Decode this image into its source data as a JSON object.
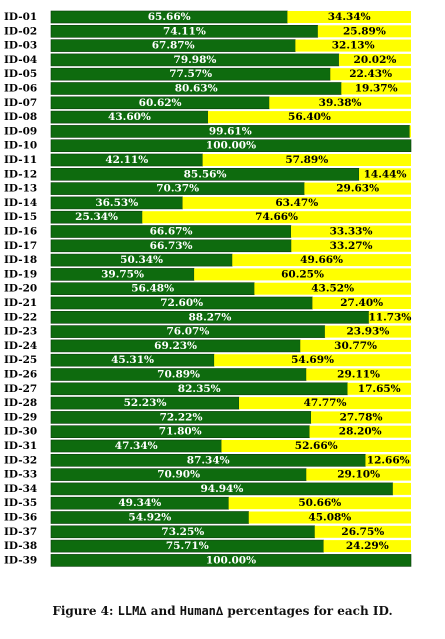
{
  "chart_data": {
    "type": "bar",
    "stacked": true,
    "orientation": "horizontal",
    "categories": [
      "ID-01",
      "ID-02",
      "ID-03",
      "ID-04",
      "ID-05",
      "ID-06",
      "ID-07",
      "ID-08",
      "ID-09",
      "ID-10",
      "ID-11",
      "ID-12",
      "ID-13",
      "ID-14",
      "ID-15",
      "ID-16",
      "ID-17",
      "ID-18",
      "ID-19",
      "ID-20",
      "ID-21",
      "ID-22",
      "ID-23",
      "ID-24",
      "ID-25",
      "ID-26",
      "ID-27",
      "ID-28",
      "ID-29",
      "ID-30",
      "ID-31",
      "ID-32",
      "ID-33",
      "ID-34",
      "ID-35",
      "ID-36",
      "ID-37",
      "ID-38",
      "ID-39"
    ],
    "series": [
      {
        "color": "#0e6b0e",
        "values": [
          65.66,
          74.11,
          67.87,
          79.98,
          77.57,
          80.63,
          60.62,
          43.6,
          99.61,
          100.0,
          42.11,
          85.56,
          70.37,
          36.53,
          25.34,
          66.67,
          66.73,
          50.34,
          39.75,
          56.48,
          72.6,
          88.27,
          76.07,
          69.23,
          45.31,
          70.89,
          82.35,
          52.23,
          72.22,
          71.8,
          47.34,
          87.34,
          70.9,
          94.94,
          49.34,
          54.92,
          73.25,
          75.71,
          100.0
        ],
        "labels": [
          "65.66%",
          "74.11%",
          "67.87%",
          "79.98%",
          "77.57%",
          "80.63%",
          "60.62%",
          "43.60%",
          "99.61%",
          "100.00%",
          "42.11%",
          "85.56%",
          "70.37%",
          "36.53%",
          "25.34%",
          "66.67%",
          "66.73%",
          "50.34%",
          "39.75%",
          "56.48%",
          "72.60%",
          "88.27%",
          "76.07%",
          "69.23%",
          "45.31%",
          "70.89%",
          "82.35%",
          "52.23%",
          "72.22%",
          "71.80%",
          "47.34%",
          "87.34%",
          "70.90%",
          "94.94%",
          "49.34%",
          "54.92%",
          "73.25%",
          "75.71%",
          "100.00%"
        ]
      },
      {
        "color": "#ffff00",
        "values": [
          34.34,
          25.89,
          32.13,
          20.02,
          22.43,
          19.37,
          39.38,
          56.4,
          0.39,
          0,
          57.89,
          14.44,
          29.63,
          63.47,
          74.66,
          33.33,
          33.27,
          49.66,
          60.25,
          43.52,
          27.4,
          11.73,
          23.93,
          30.77,
          54.69,
          29.11,
          17.65,
          47.77,
          27.78,
          28.2,
          52.66,
          12.66,
          29.1,
          5.06,
          50.66,
          45.08,
          26.75,
          24.29,
          0
        ],
        "labels": [
          "34.34%",
          "25.89%",
          "32.13%",
          "20.02%",
          "22.43%",
          "19.37%",
          "39.38%",
          "56.40%",
          "",
          "",
          "57.89%",
          "14.44%",
          "29.63%",
          "63.47%",
          "74.66%",
          "33.33%",
          "33.27%",
          "49.66%",
          "60.25%",
          "43.52%",
          "27.40%",
          "11.73%",
          "23.93%",
          "30.77%",
          "54.69%",
          "29.11%",
          "17.65%",
          "47.77%",
          "27.78%",
          "28.20%",
          "52.66%",
          "12.66%",
          "29.10%",
          "",
          "50.66%",
          "45.08%",
          "26.75%",
          "24.29%",
          ""
        ]
      }
    ],
    "xlim": [
      0,
      100
    ],
    "legend": "none",
    "grid": false
  },
  "caption": {
    "prefix": "Figure 4: ",
    "term1": "LLM∆",
    "mid": " and ",
    "term2": "Human∆",
    "suffix": " percentages for each ID."
  }
}
